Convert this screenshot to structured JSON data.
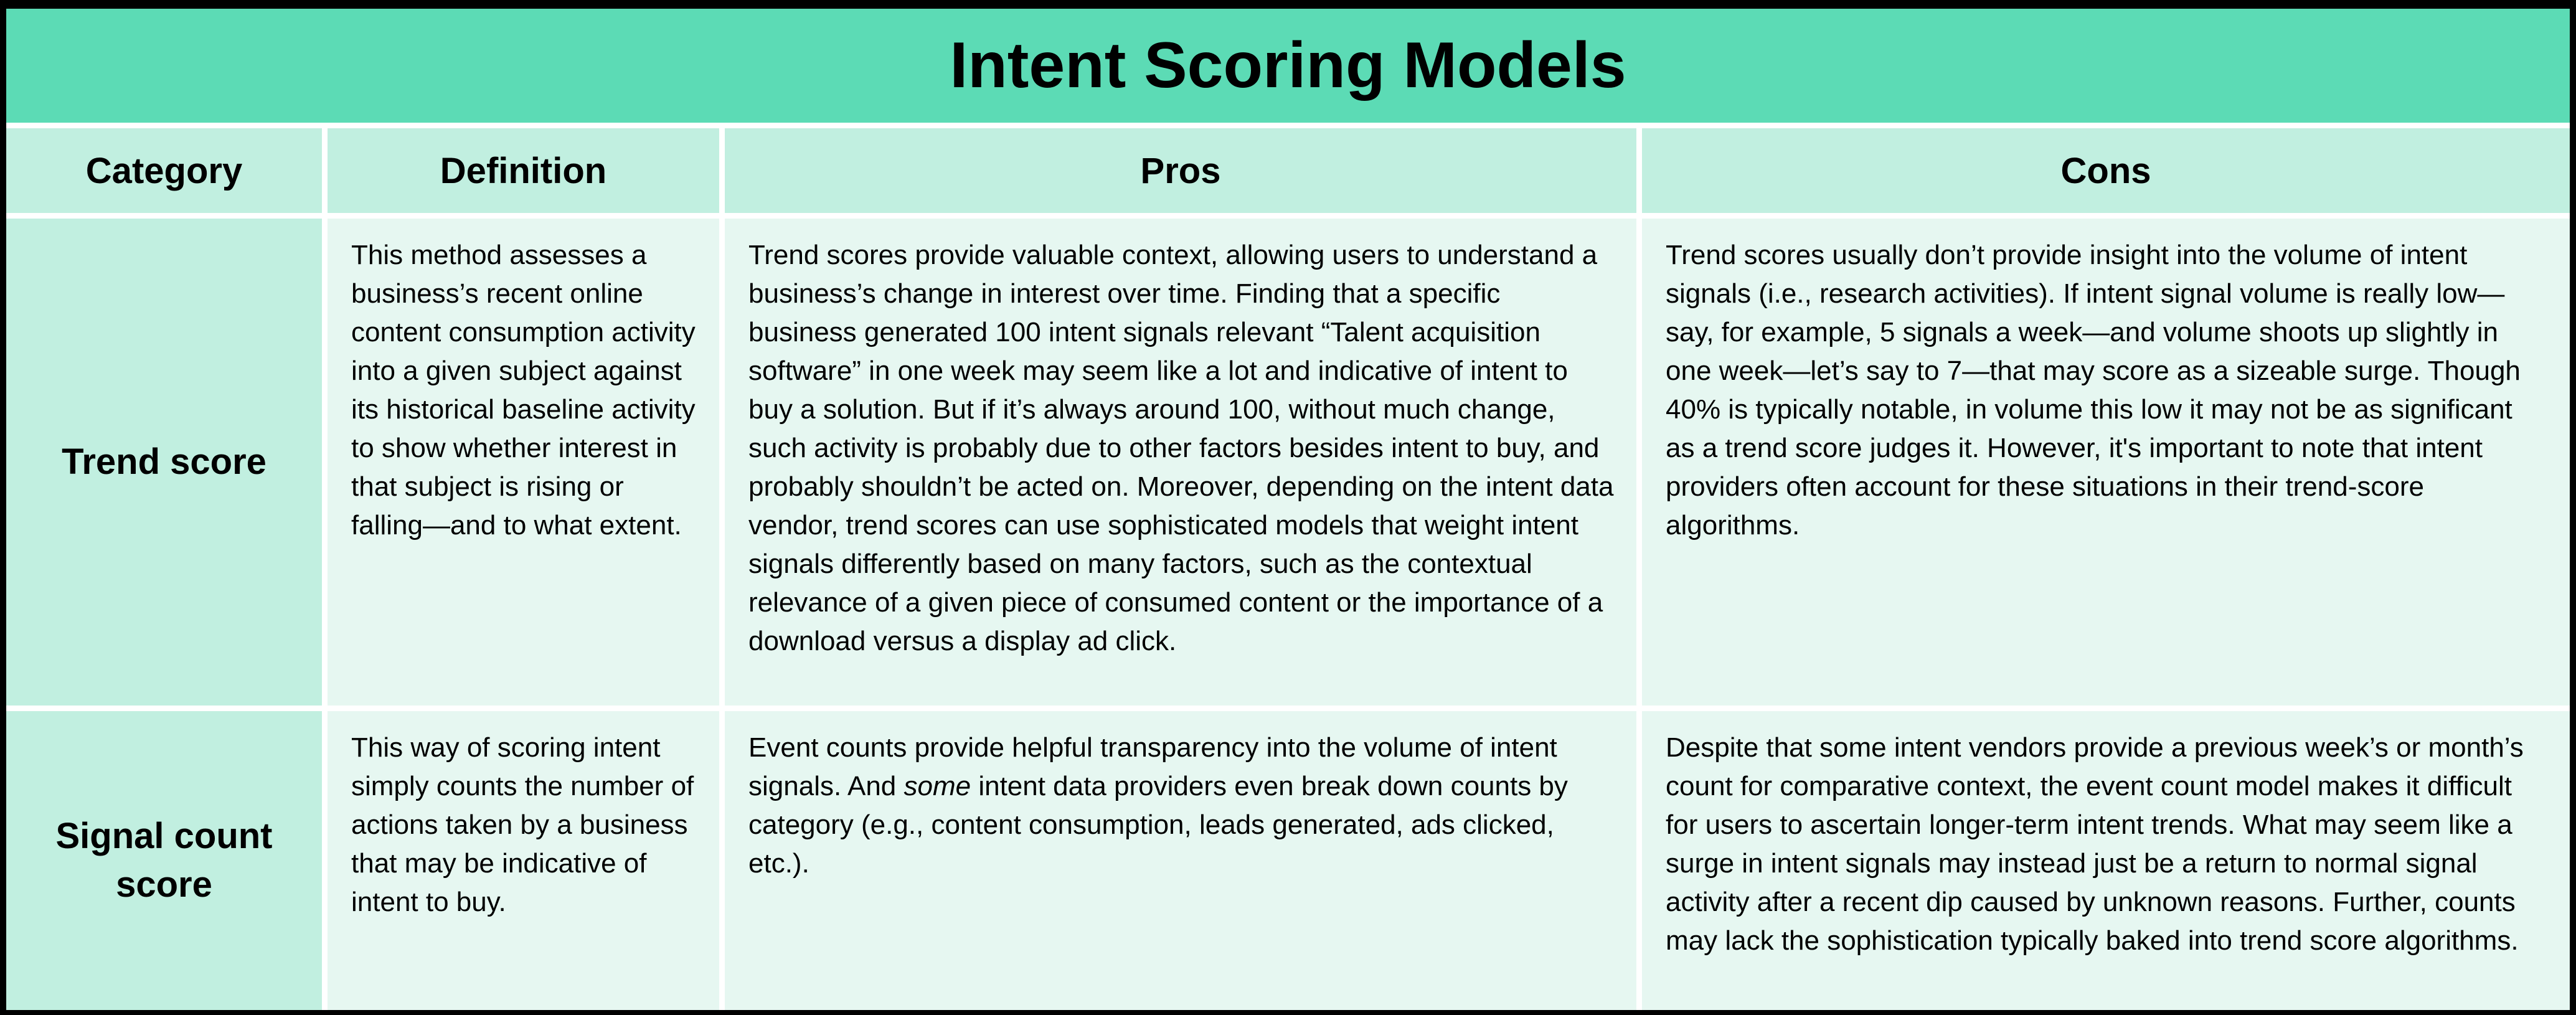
{
  "title": "Intent Scoring Models",
  "columns": [
    "Category",
    "Definition",
    "Pros",
    "Cons"
  ],
  "colors": {
    "title_bg": "#5cdbb5",
    "header_bg": "#c1efe0",
    "body_bg": "#e6f7f1",
    "grid": "#ffffff",
    "frame": "#000000",
    "text": "#000000"
  },
  "rows": [
    {
      "category": "Trend score",
      "definition": [
        {
          "t": "This method assesses a business’s recent online content consumption activity into a given subject against its historical baseline activity to show whether interest in that subject is rising or falling—and to what extent."
        }
      ],
      "pros": [
        {
          "t": "Trend scores provide valuable context, allowing users to understand a business’s change in interest over time. Finding that a specific business generated 100 intent signals relevant “Talent acquisition software” in one week may seem like a lot and indicative of intent to buy a solution. But if it’s always around 100, without much change, such activity is probably due to other factors besides intent to buy, and probably shouldn’t be acted on. Moreover, depending on the intent data vendor, trend scores can use sophisticated models that weight intent signals differently based on many factors, such as the contextual relevance of a given piece of consumed content or the importance of a download versus a display ad click."
        }
      ],
      "cons": [
        {
          "t": "Trend scores usually don’t provide insight into the volume of intent signals (i.e., research activities). If intent signal volume is really low—say, for example, 5 signals a week—and volume shoots up slightly in one week—let’s say to 7—that may score as a sizeable surge. Though 40% is typically notable, in volume this low it may not be as significant as a trend score judges it. However, it's important to note that intent providers often account for these situations in their trend-score algorithms."
        }
      ]
    },
    {
      "category": "Signal count score",
      "definition": [
        {
          "t": "This way of scoring intent simply counts the number of actions taken by a business that may be indicative of intent to buy."
        }
      ],
      "pros": [
        {
          "t": "Event counts provide helpful transparency into the volume of intent signals. And "
        },
        {
          "t": "some",
          "i": true
        },
        {
          "t": " intent data providers even break down counts by category (e.g., content consumption, leads generated, ads clicked, etc.)."
        }
      ],
      "cons": [
        {
          "t": "Despite that some intent vendors provide a previous week’s or month’s count for comparative context, the event count model makes it difficult for users to ascertain longer-term intent trends. What may seem like a surge in intent signals may instead just be a return to normal signal activity after a recent dip caused by unknown reasons. Further, counts may lack the sophistication typically baked into trend score algorithms."
        }
      ]
    }
  ]
}
